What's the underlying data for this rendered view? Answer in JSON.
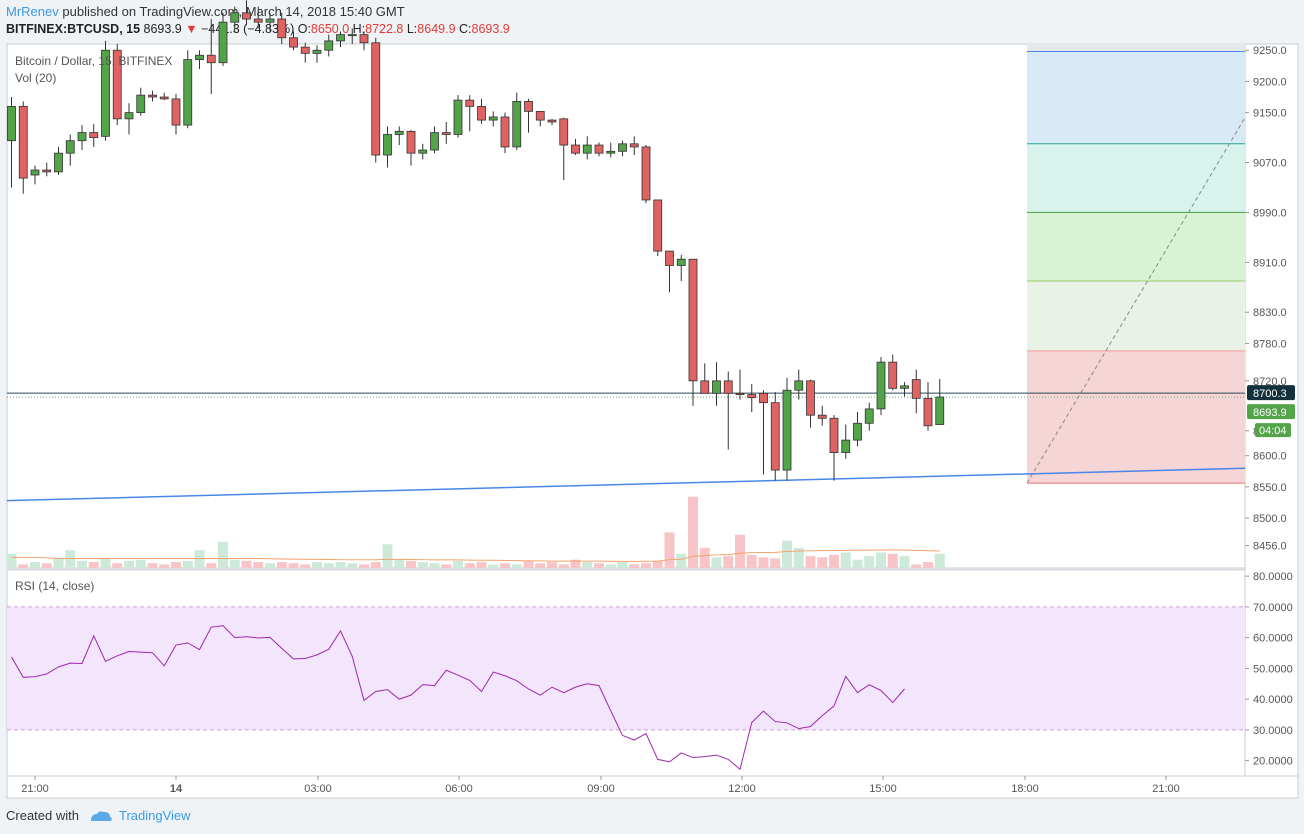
{
  "header": {
    "author": "MrRenev",
    "published": "published on TradingView.com, March 14, 2018 15:40 GMT",
    "symbol": "BITFINEX:BTCUSD, 15",
    "last": "8693.9",
    "change": "−441.3 (−4.83%)",
    "o_label": "O:",
    "o": "8650.0",
    "h_label": "H:",
    "h": "8722.8",
    "l_label": "L:",
    "l": "8649.9",
    "c_label": "C:",
    "c": "8693.9"
  },
  "legend": {
    "main": "Bitcoin / Dollar, 15, BITFINEX",
    "vol": "Vol (20)",
    "rsi": "RSI (14, close)"
  },
  "price_badges": {
    "line_price": "8700.3",
    "last_price": "8693.9",
    "countdown": "04:04"
  },
  "footer": {
    "created": "Created with",
    "brand": "TradingView"
  },
  "colors": {
    "up": "#6ba583",
    "down": "#d75442",
    "up_fill": "#53a449",
    "down_fill": "#e06363",
    "rsi_line": "#9c27b0",
    "rsi_band": "#f3e5fb",
    "trendline": "#4a86e8",
    "hline": "#2a4858"
  },
  "chart_data": {
    "type": "candlestick",
    "title": "Bitcoin / Dollar, 15, BITFINEX",
    "price_ticks": [
      "9250.0",
      "9200.0",
      "9150.0",
      "9070.0",
      "8990.0",
      "8910.0",
      "8830.0",
      "8780.0",
      "8720.0",
      "8640.0",
      "8600.0",
      "8550.0",
      "8500.0",
      "8456.0"
    ],
    "rsi_ticks": [
      "80.0000",
      "70.0000",
      "60.0000",
      "50.0000",
      "40.0000",
      "30.0000",
      "20.0000"
    ],
    "time_ticks": [
      "21:00",
      "14",
      "03:00",
      "06:00",
      "09:00",
      "12:00",
      "15:00",
      "18:00",
      "21:00"
    ],
    "candles": [
      {
        "o": 9105,
        "h": 9175,
        "l": 9030,
        "c": 9160
      },
      {
        "o": 9160,
        "h": 9168,
        "l": 9020,
        "c": 9045
      },
      {
        "o": 9050,
        "h": 9065,
        "l": 9035,
        "c": 9058
      },
      {
        "o": 9058,
        "h": 9070,
        "l": 9048,
        "c": 9055
      },
      {
        "o": 9055,
        "h": 9095,
        "l": 9050,
        "c": 9085
      },
      {
        "o": 9085,
        "h": 9115,
        "l": 9065,
        "c": 9105
      },
      {
        "o": 9105,
        "h": 9130,
        "l": 9090,
        "c": 9118
      },
      {
        "o": 9118,
        "h": 9132,
        "l": 9095,
        "c": 9110
      },
      {
        "o": 9112,
        "h": 9265,
        "l": 9105,
        "c": 9250
      },
      {
        "o": 9250,
        "h": 9260,
        "l": 9130,
        "c": 9140
      },
      {
        "o": 9140,
        "h": 9165,
        "l": 9115,
        "c": 9150
      },
      {
        "o": 9150,
        "h": 9190,
        "l": 9145,
        "c": 9178
      },
      {
        "o": 9178,
        "h": 9185,
        "l": 9168,
        "c": 9175
      },
      {
        "o": 9175,
        "h": 9182,
        "l": 9170,
        "c": 9172
      },
      {
        "o": 9172,
        "h": 9180,
        "l": 9115,
        "c": 9130
      },
      {
        "o": 9130,
        "h": 9250,
        "l": 9125,
        "c": 9235
      },
      {
        "o": 9235,
        "h": 9250,
        "l": 9220,
        "c": 9242
      },
      {
        "o": 9242,
        "h": 9300,
        "l": 9180,
        "c": 9230
      },
      {
        "o": 9230,
        "h": 9310,
        "l": 9225,
        "c": 9295
      },
      {
        "o": 9295,
        "h": 9320,
        "l": 9280,
        "c": 9310
      },
      {
        "o": 9310,
        "h": 9330,
        "l": 9290,
        "c": 9300
      },
      {
        "o": 9300,
        "h": 9320,
        "l": 9285,
        "c": 9295
      },
      {
        "o": 9295,
        "h": 9310,
        "l": 9280,
        "c": 9300
      },
      {
        "o": 9300,
        "h": 9310,
        "l": 9260,
        "c": 9270
      },
      {
        "o": 9270,
        "h": 9280,
        "l": 9250,
        "c": 9255
      },
      {
        "o": 9255,
        "h": 9262,
        "l": 9230,
        "c": 9245
      },
      {
        "o": 9245,
        "h": 9258,
        "l": 9230,
        "c": 9250
      },
      {
        "o": 9250,
        "h": 9275,
        "l": 9240,
        "c": 9265
      },
      {
        "o": 9265,
        "h": 9280,
        "l": 9255,
        "c": 9275
      },
      {
        "o": 9275,
        "h": 9285,
        "l": 9260,
        "c": 9275
      },
      {
        "o": 9275,
        "h": 9280,
        "l": 9250,
        "c": 9262
      },
      {
        "o": 9262,
        "h": 9270,
        "l": 9070,
        "c": 9082
      },
      {
        "o": 9082,
        "h": 9128,
        "l": 9062,
        "c": 9115
      },
      {
        "o": 9115,
        "h": 9128,
        "l": 9098,
        "c": 9120
      },
      {
        "o": 9120,
        "h": 9122,
        "l": 9065,
        "c": 9085
      },
      {
        "o": 9085,
        "h": 9100,
        "l": 9075,
        "c": 9090
      },
      {
        "o": 9090,
        "h": 9128,
        "l": 9085,
        "c": 9118
      },
      {
        "o": 9118,
        "h": 9135,
        "l": 9100,
        "c": 9115
      },
      {
        "o": 9115,
        "h": 9178,
        "l": 9110,
        "c": 9170
      },
      {
        "o": 9170,
        "h": 9178,
        "l": 9120,
        "c": 9160
      },
      {
        "o": 9160,
        "h": 9172,
        "l": 9132,
        "c": 9138
      },
      {
        "o": 9138,
        "h": 9152,
        "l": 9128,
        "c": 9143
      },
      {
        "o": 9143,
        "h": 9150,
        "l": 9085,
        "c": 9095
      },
      {
        "o": 9095,
        "h": 9182,
        "l": 9090,
        "c": 9168
      },
      {
        "o": 9168,
        "h": 9172,
        "l": 9118,
        "c": 9152
      },
      {
        "o": 9152,
        "h": 9152,
        "l": 9128,
        "c": 9138
      },
      {
        "o": 9138,
        "h": 9140,
        "l": 9130,
        "c": 9135
      },
      {
        "o": 9140,
        "h": 9142,
        "l": 9042,
        "c": 9098
      },
      {
        "o": 9098,
        "h": 9108,
        "l": 9082,
        "c": 9085
      },
      {
        "o": 9085,
        "h": 9112,
        "l": 9075,
        "c": 9098
      },
      {
        "o": 9098,
        "h": 9102,
        "l": 9080,
        "c": 9085
      },
      {
        "o": 9085,
        "h": 9102,
        "l": 9078,
        "c": 9088
      },
      {
        "o": 9088,
        "h": 9105,
        "l": 9080,
        "c": 9100
      },
      {
        "o": 9100,
        "h": 9112,
        "l": 9082,
        "c": 9095
      },
      {
        "o": 9095,
        "h": 9098,
        "l": 9005,
        "c": 9010
      },
      {
        "o": 9010,
        "h": 9010,
        "l": 8920,
        "c": 8928
      },
      {
        "o": 8928,
        "h": 8928,
        "l": 8862,
        "c": 8905
      },
      {
        "o": 8905,
        "h": 8922,
        "l": 8880,
        "c": 8915
      },
      {
        "o": 8915,
        "h": 8915,
        "l": 8680,
        "c": 8720
      },
      {
        "o": 8720,
        "h": 8748,
        "l": 8705,
        "c": 8700
      },
      {
        "o": 8700,
        "h": 8750,
        "l": 8680,
        "c": 8720
      },
      {
        "o": 8720,
        "h": 8735,
        "l": 8610,
        "c": 8700
      },
      {
        "o": 8700,
        "h": 8738,
        "l": 8690,
        "c": 8698
      },
      {
        "o": 8698,
        "h": 8715,
        "l": 8670,
        "c": 8693
      },
      {
        "o": 8700,
        "h": 8705,
        "l": 8570,
        "c": 8685
      },
      {
        "o": 8685,
        "h": 8702,
        "l": 8560,
        "c": 8577
      },
      {
        "o": 8577,
        "h": 8725,
        "l": 8560,
        "c": 8705
      },
      {
        "o": 8705,
        "h": 8738,
        "l": 8690,
        "c": 8720
      },
      {
        "o": 8720,
        "h": 8722,
        "l": 8645,
        "c": 8665
      },
      {
        "o": 8665,
        "h": 8680,
        "l": 8648,
        "c": 8660
      },
      {
        "o": 8660,
        "h": 8665,
        "l": 8560,
        "c": 8605
      },
      {
        "o": 8605,
        "h": 8650,
        "l": 8595,
        "c": 8625
      },
      {
        "o": 8625,
        "h": 8670,
        "l": 8615,
        "c": 8652
      },
      {
        "o": 8652,
        "h": 8685,
        "l": 8640,
        "c": 8675
      },
      {
        "o": 8675,
        "h": 8758,
        "l": 8665,
        "c": 8750
      },
      {
        "o": 8750,
        "h": 8762,
        "l": 8705,
        "c": 8708
      },
      {
        "o": 8708,
        "h": 8718,
        "l": 8695,
        "c": 8712
      },
      {
        "o": 8722,
        "h": 8738,
        "l": 8668,
        "c": 8692
      },
      {
        "o": 8692,
        "h": 8718,
        "l": 8640,
        "c": 8648
      },
      {
        "o": 8650,
        "h": 8723,
        "l": 8650,
        "c": 8694
      }
    ],
    "volume": [
      12,
      3,
      5,
      4,
      8,
      15,
      6,
      5,
      8,
      4,
      6,
      7,
      4,
      3,
      5,
      6,
      15,
      4,
      22,
      7,
      6,
      5,
      4,
      5,
      4,
      3,
      5,
      4,
      5,
      4,
      3,
      5,
      20,
      7,
      6,
      5,
      4,
      3,
      6,
      4,
      5,
      3,
      4,
      3,
      6,
      4,
      5,
      3,
      7,
      5,
      4,
      3,
      5,
      3,
      4,
      6,
      30,
      12,
      60,
      17,
      9,
      10,
      28,
      11,
      9,
      8,
      23,
      17,
      10,
      9,
      11,
      13,
      7,
      10,
      13,
      12,
      10,
      3,
      5,
      12
    ],
    "volume_ma": [
      9,
      9,
      9,
      8.5,
      8,
      8,
      8,
      8,
      8,
      8,
      8,
      8,
      8,
      8,
      8,
      8,
      8,
      8,
      8,
      8,
      8,
      8,
      7.8,
      7.6,
      7.5,
      7.4,
      7.3,
      7.2,
      7,
      7,
      7,
      7,
      7.3,
      7.3,
      7.2,
      7,
      6.8,
      6.8,
      6.8,
      6.6,
      6.5,
      6.5,
      6.3,
      6.2,
      6,
      6,
      5.8,
      5.8,
      5.8,
      5.8,
      5.8,
      5.7,
      5.6,
      5.6,
      5.7,
      5.8,
      7,
      7.4,
      9.8,
      10.4,
      11,
      11.4,
      12.4,
      12.9,
      13.1,
      13.2,
      13.9,
      14.3,
      14.5,
      14.6,
      14.7,
      14.8,
      14.9,
      15,
      15.2,
      15.3,
      15.1,
      14.8,
      14.5,
      14.3
    ],
    "rsi": [
      53.7,
      47.1,
      47.3,
      48.2,
      50.5,
      51.7,
      51.6,
      60.6,
      52.3,
      54.1,
      55.5,
      55.3,
      55.1,
      50.8,
      57.6,
      58.3,
      56.1,
      63.4,
      63.9,
      60,
      60.3,
      59.9,
      60.1,
      56.5,
      53.1,
      53.2,
      54.4,
      56.2,
      62.2,
      53.9,
      39.6,
      42.5,
      43.1,
      40,
      41.3,
      44.7,
      44.4,
      49.4,
      47.8,
      46.1,
      42.5,
      48.8,
      47.6,
      46,
      43.3,
      41.3,
      43.9,
      42.1,
      43.9,
      45,
      44.4,
      36.2,
      28.2,
      26.7,
      28.8,
      20.4,
      19.6,
      22.5,
      21,
      21.3,
      21.8,
      20.4,
      17.2,
      32.4,
      36.1,
      32.7,
      32.3,
      30.4,
      31.1,
      34.6,
      37.8,
      47.4,
      42.1,
      44.7,
      42.8,
      38.9,
      43.3
    ],
    "ylim": [
      8420,
      9260
    ],
    "rsi_ylim": [
      15,
      82
    ]
  }
}
